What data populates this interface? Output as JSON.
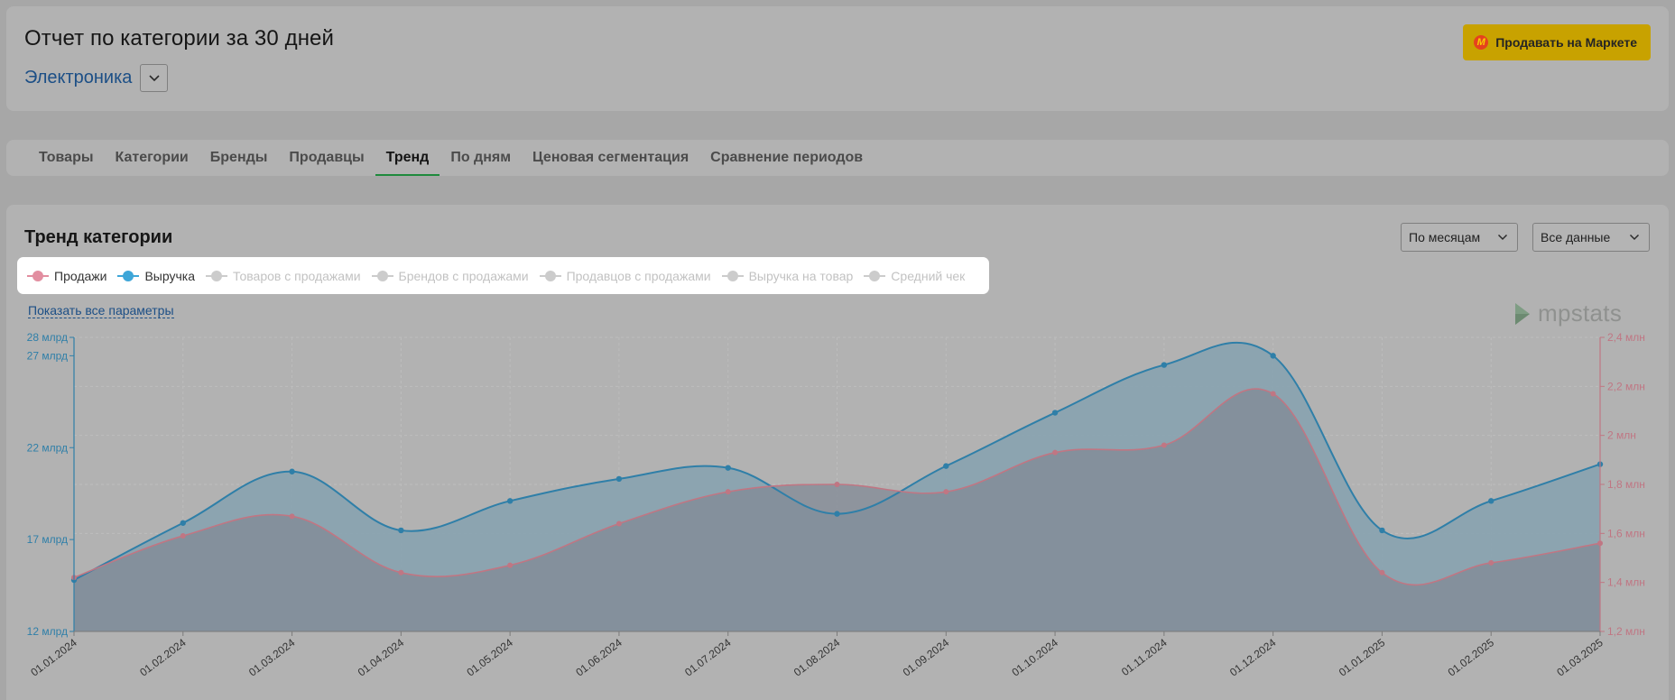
{
  "header": {
    "title": "Отчет по категории за 30 дней",
    "category": "Электроника",
    "sell_button": "Продавать на Маркете"
  },
  "tabs": [
    {
      "label": "Товары",
      "active": false
    },
    {
      "label": "Категории",
      "active": false
    },
    {
      "label": "Бренды",
      "active": false
    },
    {
      "label": "Продавцы",
      "active": false
    },
    {
      "label": "Тренд",
      "active": true
    },
    {
      "label": "По дням",
      "active": false
    },
    {
      "label": "Ценовая сегментация",
      "active": false
    },
    {
      "label": "Сравнение периодов",
      "active": false
    }
  ],
  "chart_panel": {
    "title": "Тренд категории",
    "period_select": "По месяцам",
    "data_select": "Все данные",
    "show_all_params": "Показать все параметры",
    "brand": "mpstats"
  },
  "legend": [
    {
      "label": "Продажи",
      "active": true,
      "color": "#e28ea0"
    },
    {
      "label": "Выручка",
      "active": true,
      "color": "#3ea6d8"
    },
    {
      "label": "Товаров с продажами",
      "active": false,
      "color": "#cccccc"
    },
    {
      "label": "Брендов с продажами",
      "active": false,
      "color": "#cccccc"
    },
    {
      "label": "Продавцов с продажами",
      "active": false,
      "color": "#cccccc"
    },
    {
      "label": "Выручка на товар",
      "active": false,
      "color": "#cccccc"
    },
    {
      "label": "Средний чек",
      "active": false,
      "color": "#cccccc"
    }
  ],
  "chart_data": {
    "type": "area",
    "categories": [
      "01.01.2024",
      "01.02.2024",
      "01.03.2024",
      "01.04.2024",
      "01.05.2024",
      "01.06.2024",
      "01.07.2024",
      "01.08.2024",
      "01.09.2024",
      "01.10.2024",
      "01.11.2024",
      "01.12.2024",
      "01.01.2025",
      "01.02.2025",
      "01.03.2025"
    ],
    "series": [
      {
        "name": "Выручка",
        "axis": "left",
        "color": "#2f7fa8",
        "values": [
          14.8,
          17.9,
          20.7,
          17.5,
          19.1,
          20.3,
          20.9,
          18.4,
          21.0,
          23.9,
          26.5,
          27.0,
          17.5,
          19.1,
          21.1
        ]
      },
      {
        "name": "Продажи",
        "axis": "right",
        "color": "#c07683",
        "values": [
          1.42,
          1.59,
          1.67,
          1.44,
          1.47,
          1.64,
          1.77,
          1.8,
          1.77,
          1.93,
          1.96,
          2.17,
          1.44,
          1.48,
          1.56
        ]
      }
    ],
    "left_axis": {
      "min": 12,
      "max": 28,
      "ticks": [
        12,
        17,
        22,
        27,
        28
      ],
      "tick_labels": [
        "12 млрд",
        "17 млрд",
        "22 млрд",
        "27 млрд",
        "28 млрд"
      ],
      "color": "#2f7fa8"
    },
    "right_axis": {
      "min": 1.2,
      "max": 2.4,
      "ticks": [
        1.2,
        1.4,
        1.6,
        1.8,
        2.0,
        2.2,
        2.4
      ],
      "tick_labels": [
        "1,2 млн",
        "1,4 млн",
        "1,6 млн",
        "1,8 млн",
        "2 млн",
        "2,2 млн",
        "2,4 млн"
      ],
      "color": "#c07683"
    },
    "grid": true
  }
}
